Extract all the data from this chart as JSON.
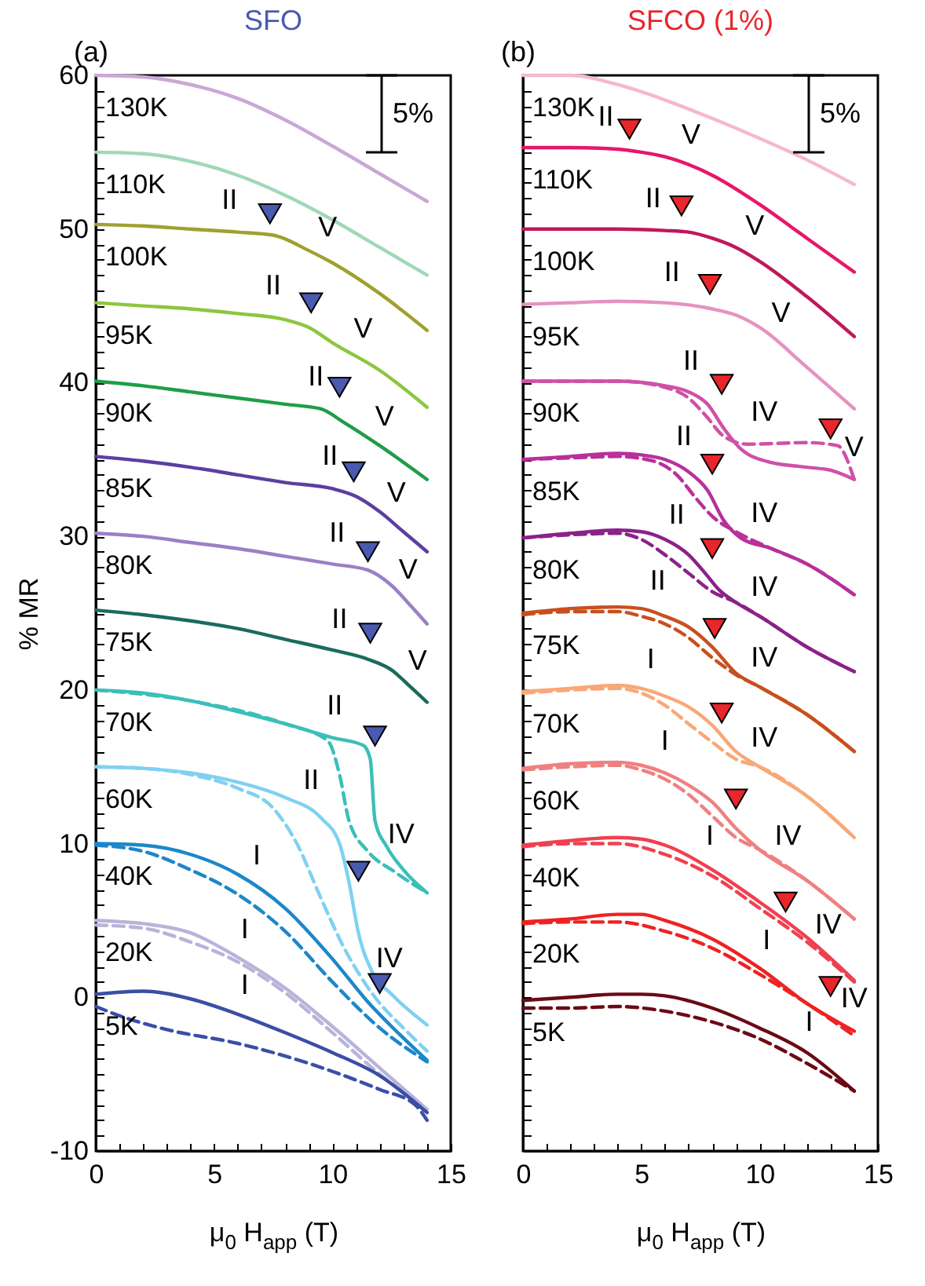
{
  "chart_data": [
    {
      "type": "line",
      "title": "SFO",
      "xlabel": "μ$_{0}$ H$_{app}$ (T)",
      "ylabel": "% MR",
      "xlim": [
        0,
        15
      ],
      "ylim": [
        -10,
        60
      ],
      "xticks": [
        0,
        {
          "value": 1,
          "label": null
        },
        {
          "value": 2,
          "label": null
        },
        {
          "value": 3,
          "label": null
        },
        {
          "value": 4,
          "label": null
        },
        5,
        {
          "value": 6,
          "label": null
        },
        {
          "value": 7,
          "label": null
        },
        {
          "value": 8,
          "label": null
        },
        {
          "value": 9,
          "label": null
        },
        10,
        {
          "value": 11,
          "label": null
        },
        {
          "value": 12,
          "label": null
        },
        {
          "value": 13,
          "label": null
        },
        {
          "value": 14,
          "label": null
        },
        15
      ],
      "yticks": [
        -10,
        {
          "value": -9,
          "label": null
        },
        {
          "value": -8,
          "label": null
        },
        {
          "value": -7,
          "label": null
        },
        {
          "value": -6,
          "label": null
        },
        {
          "value": -5,
          "label": null
        },
        {
          "value": -4,
          "label": null
        },
        {
          "value": -3,
          "label": null
        },
        {
          "value": -2,
          "label": null
        },
        {
          "value": -1,
          "label": null
        },
        0,
        {
          "value": 1,
          "label": null
        },
        {
          "value": 2,
          "label": null
        },
        {
          "value": 3,
          "label": null
        },
        {
          "value": 4,
          "label": null
        },
        {
          "value": 5,
          "label": null
        },
        {
          "value": 6,
          "label": null
        },
        {
          "value": 7,
          "label": null
        },
        {
          "value": 8,
          "label": null
        },
        {
          "value": 9,
          "label": null
        },
        10,
        {
          "value": 11,
          "label": null
        },
        {
          "value": 12,
          "label": null
        },
        {
          "value": 13,
          "label": null
        },
        {
          "value": 14,
          "label": null
        },
        {
          "value": 15,
          "label": null
        },
        {
          "value": 16,
          "label": null
        },
        {
          "value": 17,
          "label": null
        },
        {
          "value": 18,
          "label": null
        },
        {
          "value": 19,
          "label": null
        },
        20,
        {
          "value": 21,
          "label": null
        },
        {
          "value": 22,
          "label": null
        },
        {
          "value": 23,
          "label": null
        },
        {
          "value": 24,
          "label": null
        },
        {
          "value": 25,
          "label": null
        },
        {
          "value": 26,
          "label": null
        },
        {
          "value": 27,
          "label": null
        },
        {
          "value": 28,
          "label": null
        },
        {
          "value": 29,
          "label": null
        },
        30,
        {
          "value": 31,
          "label": null
        },
        {
          "value": 32,
          "label": null
        },
        {
          "value": 33,
          "label": null
        },
        {
          "value": 34,
          "label": null
        },
        {
          "value": 35,
          "label": null
        },
        {
          "value": 36,
          "label": null
        },
        {
          "value": 37,
          "label": null
        },
        {
          "value": 38,
          "label": null
        },
        {
          "value": 39,
          "label": null
        },
        40,
        {
          "value": 41,
          "label": null
        },
        {
          "value": 42,
          "label": null
        },
        {
          "value": 43,
          "label": null
        },
        {
          "value": 44,
          "label": null
        },
        {
          "value": 45,
          "label": null
        },
        {
          "value": 46,
          "label": null
        },
        {
          "value": 47,
          "label": null
        },
        {
          "value": 48,
          "label": null
        },
        {
          "value": 49,
          "label": null
        },
        50,
        {
          "value": 51,
          "label": null
        },
        {
          "value": 52,
          "label": null
        },
        {
          "value": 53,
          "label": null
        },
        {
          "value": 54,
          "label": null
        },
        {
          "value": 55,
          "label": null
        },
        {
          "value": 56,
          "label": null
        },
        {
          "value": 57,
          "label": null
        },
        {
          "value": 58,
          "label": null
        },
        {
          "value": 59,
          "label": null
        },
        60
      ],
      "annotations": [
        "(a)",
        {
          "text": "II",
          "x": 5.65,
          "y": 49.8
        },
        {
          "text": "V",
          "x": 9.8,
          "y": 48
        },
        {
          "text": "II",
          "x": 7.5,
          "y": 44.2
        },
        {
          "text": "V",
          "x": 11.3,
          "y": 41.4
        },
        {
          "text": "II",
          "x": 9.3,
          "y": 38.3
        },
        {
          "text": "V",
          "x": 12.2,
          "y": 35.7
        },
        {
          "text": "II",
          "x": 9.9,
          "y": 33.1
        },
        {
          "text": "V",
          "x": 12.7,
          "y": 30.7
        },
        {
          "text": "II",
          "x": 10.2,
          "y": 28.1
        },
        {
          "text": "V",
          "x": 13.2,
          "y": 25.7
        },
        {
          "text": "II",
          "x": 10.3,
          "y": 22.5
        },
        {
          "text": "V",
          "x": 13.6,
          "y": 19.8
        },
        {
          "text": "II",
          "x": 10.1,
          "y": 16.9
        },
        {
          "text": "II",
          "x": 9.1,
          "y": 12
        },
        {
          "text": "IV",
          "x": 12.9,
          "y": 8.5
        },
        {
          "text": "I",
          "x": 6.8,
          "y": 7.1
        },
        {
          "text": "IV",
          "x": 12.4,
          "y": 0.4
        },
        {
          "text": "I",
          "x": 6.3,
          "y": 2.3
        },
        {
          "text": "I",
          "x": 6.3,
          "y": -1.3
        },
        "5%"
      ],
      "series": [
        {
          "name": "130K",
          "color": "#c9a7d6",
          "x": [
            0,
            2,
            4,
            6,
            8,
            10,
            12,
            14
          ],
          "values": [
            60,
            59.9,
            59.4,
            58.5,
            57.1,
            55.4,
            53.6,
            51.8
          ]
        },
        {
          "name": "110K",
          "color": "#9fd8b8",
          "x": [
            0,
            2,
            4,
            6,
            8,
            10,
            12,
            14
          ],
          "values": [
            55,
            54.9,
            54.4,
            53.5,
            52.2,
            50.6,
            48.8,
            47
          ]
        },
        {
          "name": "100K",
          "color": "#a0a030",
          "x": [
            0,
            2,
            4,
            6,
            7.5,
            9,
            10,
            12,
            14
          ],
          "values": [
            50.3,
            50.2,
            50,
            49.8,
            49.6,
            48.6,
            47.8,
            45.8,
            43.4
          ]
        },
        {
          "name": "95K",
          "color": "#8cc63f",
          "x": [
            0,
            2,
            4,
            6,
            8,
            9,
            10,
            12,
            14
          ],
          "values": [
            45.2,
            45,
            44.8,
            44.5,
            44.1,
            43.6,
            42.6,
            40.8,
            38.4
          ]
        },
        {
          "name": "90K",
          "color": "#1e9e48",
          "x": [
            0,
            2,
            4,
            6,
            8,
            9.5,
            10.5,
            12,
            14
          ],
          "values": [
            40.1,
            39.8,
            39.4,
            39,
            38.6,
            38.3,
            37.4,
            35.9,
            33.7
          ]
        },
        {
          "name": "85K",
          "color": "#5b3fa0",
          "x": [
            0,
            2,
            4,
            6,
            8,
            10,
            11,
            12,
            13,
            14
          ],
          "values": [
            35.2,
            34.9,
            34.5,
            34,
            33.5,
            33.1,
            32.6,
            31.6,
            30.3,
            29
          ]
        },
        {
          "name": "80K",
          "color": "#9b80c4",
          "x": [
            0,
            2,
            4,
            6,
            8,
            10,
            11.5,
            12.5,
            13.3,
            14
          ],
          "values": [
            30.2,
            30,
            29.6,
            29.2,
            28.7,
            28.2,
            27.8,
            26.8,
            25.5,
            24.3
          ]
        },
        {
          "name": "75K",
          "color": "#1a6b5e",
          "x": [
            0,
            2,
            4,
            6,
            8,
            10,
            11.5,
            12.5,
            13.3,
            14
          ],
          "values": [
            25.2,
            24.9,
            24.5,
            24,
            23.3,
            22.6,
            22,
            21.3,
            20.2,
            19.2
          ]
        },
        {
          "name": "70K",
          "color": "#3bbfb8",
          "x": [
            0,
            2,
            4,
            6,
            8,
            10,
            11.3,
            11.6,
            11.8,
            12.3,
            13,
            14
          ],
          "values": [
            20,
            19.8,
            19.3,
            18.6,
            17.8,
            16.9,
            16.4,
            15.5,
            11.5,
            9.8,
            8.3,
            6.8
          ]
        },
        {
          "color": "#3bbfb8",
          "line_style": "dashed",
          "x": [
            0,
            4,
            8,
            9.8,
            10.3,
            10.7,
            11.5,
            12.6,
            14
          ],
          "values": [
            20,
            19.3,
            17.8,
            16.7,
            14.5,
            11.5,
            9.5,
            8.2,
            6.8
          ]
        },
        {
          "name": "60K",
          "color": "#7fd1f0",
          "x": [
            0,
            2,
            4,
            6,
            8,
            9.5,
            10.3,
            10.7,
            11.1,
            11.7,
            12.5,
            14
          ],
          "values": [
            15,
            14.9,
            14.6,
            14,
            13,
            11.7,
            10,
            7.5,
            4.2,
            1.6,
            0.2,
            -1.8
          ]
        },
        {
          "color": "#7fd1f0",
          "line_style": "dashed",
          "x": [
            0,
            2,
            4,
            6,
            7.5,
            8.5,
            9.5,
            10.5,
            11.8,
            13,
            14
          ],
          "values": [
            15,
            14.9,
            14.5,
            13.6,
            12.3,
            10,
            6.5,
            3.2,
            0,
            -2,
            -3.5
          ]
        },
        {
          "name": "40K",
          "color": "#1c87c9",
          "x": [
            0,
            2,
            4,
            6,
            8,
            10,
            11.5,
            12.5,
            14
          ],
          "values": [
            10,
            9.9,
            9.3,
            8,
            5.8,
            2.5,
            -0.3,
            -1.9,
            -4.1
          ]
        },
        {
          "color": "#1c87c9",
          "line_style": "dashed",
          "x": [
            0,
            2,
            4,
            6,
            8,
            10,
            12,
            14
          ],
          "values": [
            9.9,
            9.5,
            8.3,
            6.7,
            4.3,
            1,
            -2,
            -4.2
          ]
        },
        {
          "name": "20K",
          "color": "#b7b4da",
          "x": [
            0,
            2,
            4,
            6,
            8,
            10,
            12,
            14
          ],
          "values": [
            5,
            4.8,
            4.2,
            2.6,
            0.6,
            -1.9,
            -4.6,
            -7.3
          ]
        },
        {
          "color": "#b7b4da",
          "line_style": "dashed",
          "x": [
            0,
            2,
            4,
            6,
            8,
            10,
            12,
            14
          ],
          "values": [
            4.7,
            4.5,
            3.6,
            2.3,
            0.3,
            -2.3,
            -5,
            -7.3
          ]
        },
        {
          "name": "5K",
          "color": "#3b4ea6",
          "x": [
            0,
            2,
            4,
            6,
            8,
            10,
            12,
            14
          ],
          "values": [
            0.2,
            0.4,
            -0.1,
            -1.1,
            -2.3,
            -3.6,
            -5.1,
            -7.5
          ]
        },
        {
          "color": "#3b4ea6",
          "line_style": "dashed",
          "x": [
            0,
            1,
            3,
            6,
            9,
            12,
            13.5,
            14
          ],
          "values": [
            -0.6,
            -1.2,
            -2.1,
            -3,
            -4.3,
            -6,
            -7,
            -8
          ]
        },
        {
          "type": "scatter",
          "marker": "triangle",
          "color": "#4a5ab0",
          "x": [
            7.36,
            9.1,
            10.3,
            10.9,
            11.5,
            11.6,
            11.8,
            11.1,
            12
          ],
          "values": [
            51,
            45.2,
            39.7,
            34.2,
            29,
            23.7,
            17,
            8.2,
            0.9
          ]
        }
      ]
    },
    {
      "type": "line",
      "title": "SFCO (1%)",
      "xlabel": "μ$_{0}$ H$_{app}$ (T)",
      "xlim": [
        0,
        15
      ],
      "ylim": [
        -10,
        60
      ],
      "tick_labels": "x",
      "xticks": [
        0,
        {
          "value": 1,
          "label": null
        },
        {
          "value": 2,
          "label": null
        },
        {
          "value": 3,
          "label": null
        },
        {
          "value": 4,
          "label": null
        },
        5,
        {
          "value": 6,
          "label": null
        },
        {
          "value": 7,
          "label": null
        },
        {
          "value": 8,
          "label": null
        },
        {
          "value": 9,
          "label": null
        },
        10,
        {
          "value": 11,
          "label": null
        },
        {
          "value": 12,
          "label": null
        },
        {
          "value": 13,
          "label": null
        },
        {
          "value": 14,
          "label": null
        },
        15
      ],
      "yticks": [
        -10,
        {
          "value": -9,
          "label": null
        },
        {
          "value": -8,
          "label": null
        },
        {
          "value": -7,
          "label": null
        },
        {
          "value": -6,
          "label": null
        },
        {
          "value": -5,
          "label": null
        },
        {
          "value": -4,
          "label": null
        },
        {
          "value": -3,
          "label": null
        },
        {
          "value": -2,
          "label": null
        },
        {
          "value": -1,
          "label": null
        },
        0,
        {
          "value": 1,
          "label": null
        },
        {
          "value": 2,
          "label": null
        },
        {
          "value": 3,
          "label": null
        },
        {
          "value": 4,
          "label": null
        },
        {
          "value": 5,
          "label": null
        },
        {
          "value": 6,
          "label": null
        },
        {
          "value": 7,
          "label": null
        },
        {
          "value": 8,
          "label": null
        },
        {
          "value": 9,
          "label": null
        },
        10,
        {
          "value": 11,
          "label": null
        },
        {
          "value": 12,
          "label": null
        },
        {
          "value": 13,
          "label": null
        },
        {
          "value": 14,
          "label": null
        },
        {
          "value": 15,
          "label": null
        },
        {
          "value": 16,
          "label": null
        },
        {
          "value": 17,
          "label": null
        },
        {
          "value": 18,
          "label": null
        },
        {
          "value": 19,
          "label": null
        },
        20,
        {
          "value": 21,
          "label": null
        },
        {
          "value": 22,
          "label": null
        },
        {
          "value": 23,
          "label": null
        },
        {
          "value": 24,
          "label": null
        },
        {
          "value": 25,
          "label": null
        },
        {
          "value": 26,
          "label": null
        },
        {
          "value": 27,
          "label": null
        },
        {
          "value": 28,
          "label": null
        },
        {
          "value": 29,
          "label": null
        },
        30,
        {
          "value": 31,
          "label": null
        },
        {
          "value": 32,
          "label": null
        },
        {
          "value": 33,
          "label": null
        },
        {
          "value": 34,
          "label": null
        },
        {
          "value": 35,
          "label": null
        },
        {
          "value": 36,
          "label": null
        },
        {
          "value": 37,
          "label": null
        },
        {
          "value": 38,
          "label": null
        },
        {
          "value": 39,
          "label": null
        },
        40,
        {
          "value": 41,
          "label": null
        },
        {
          "value": 42,
          "label": null
        },
        {
          "value": 43,
          "label": null
        },
        {
          "value": 44,
          "label": null
        },
        {
          "value": 45,
          "label": null
        },
        {
          "value": 46,
          "label": null
        },
        {
          "value": 47,
          "label": null
        },
        {
          "value": 48,
          "label": null
        },
        {
          "value": 49,
          "label": null
        },
        50,
        {
          "value": 51,
          "label": null
        },
        {
          "value": 52,
          "label": null
        },
        {
          "value": 53,
          "label": null
        },
        {
          "value": 54,
          "label": null
        },
        {
          "value": 55,
          "label": null
        },
        {
          "value": 56,
          "label": null
        },
        {
          "value": 57,
          "label": null
        },
        {
          "value": 58,
          "label": null
        },
        {
          "value": 59,
          "label": null
        },
        60
      ],
      "annotations": [
        "(b)",
        {
          "text": "II",
          "x": 3.5,
          "y": 55.2
        },
        {
          "text": "V",
          "x": 7.1,
          "y": 54
        },
        {
          "text": "II",
          "x": 5.5,
          "y": 49.9
        },
        {
          "text": "V",
          "x": 9.8,
          "y": 48.1
        },
        {
          "text": "II",
          "x": 6.3,
          "y": 45.1
        },
        {
          "text": "V",
          "x": 10.9,
          "y": 42.4
        },
        {
          "text": "II",
          "x": 7.1,
          "y": 39.3
        },
        {
          "text": "IV",
          "x": 10.2,
          "y": 36
        },
        {
          "text": "II",
          "x": 6.8,
          "y": 34.4
        },
        {
          "text": "V",
          "x": 14,
          "y": 33.7
        },
        {
          "text": "IV",
          "x": 10.2,
          "y": 29.4
        },
        {
          "text": "II",
          "x": 6.5,
          "y": 29.3
        },
        {
          "text": "IV",
          "x": 10.2,
          "y": 24.6
        },
        {
          "text": "II",
          "x": 5.7,
          "y": 25
        },
        {
          "text": "I",
          "x": 5.4,
          "y": 19.9
        },
        {
          "text": "IV",
          "x": 10.2,
          "y": 20
        },
        {
          "text": "I",
          "x": 6,
          "y": 14.6
        },
        {
          "text": "IV",
          "x": 10.2,
          "y": 14.8
        },
        {
          "text": "I",
          "x": 7.9,
          "y": 8.4
        },
        {
          "text": "IV",
          "x": 11.2,
          "y": 8.4
        },
        {
          "text": "I",
          "x": 10.3,
          "y": 1.6
        },
        {
          "text": "IV",
          "x": 12.9,
          "y": 2.6
        },
        {
          "text": "I",
          "x": 12.1,
          "y": -3.7
        },
        {
          "text": "IV",
          "x": 14,
          "y": -2.2
        },
        "5%"
      ],
      "series": [
        {
          "name": "130K",
          "color": "#f5b8d0",
          "x": [
            0,
            2,
            4,
            6,
            8,
            10,
            12,
            14
          ],
          "values": [
            60,
            60,
            59.4,
            58.4,
            57.2,
            55.9,
            54.5,
            52.9
          ]
        },
        {
          "name": "110K",
          "color": "#e8166a",
          "x": [
            0,
            2,
            4,
            5,
            6,
            8,
            10,
            12,
            14
          ],
          "values": [
            55.3,
            55.3,
            55.2,
            55,
            54.7,
            53.5,
            51.6,
            49.4,
            47.2
          ]
        },
        {
          "name": "100K",
          "color": "#c0185a",
          "x": [
            0,
            2,
            4,
            6,
            7,
            8,
            9,
            10,
            12,
            14
          ],
          "values": [
            50,
            50,
            50,
            49.9,
            49.8,
            49.4,
            48.8,
            47.9,
            45.6,
            43
          ]
        },
        {
          "name": "95K",
          "color": "#e592c0",
          "x": [
            0,
            2,
            4,
            6,
            8,
            9,
            10,
            12,
            14
          ],
          "values": [
            45.1,
            45.2,
            45.3,
            45.2,
            44.8,
            44.4,
            43.6,
            41,
            38.3
          ]
        },
        {
          "name": "90K",
          "color": "#d050a8",
          "x": [
            0,
            2,
            4,
            6,
            7,
            7.8,
            8.5,
            9.2,
            10.5,
            12,
            13,
            14
          ],
          "values": [
            40.1,
            40.1,
            40.1,
            39.8,
            39.4,
            38.6,
            37,
            35.7,
            34.8,
            34.5,
            34.3,
            33.7
          ]
        },
        {
          "color": "#d050a8",
          "line_style": "dashed",
          "x": [
            0,
            4,
            6,
            7,
            7.7,
            8.5,
            9.5,
            12,
            13.3,
            14
          ],
          "values": [
            40.1,
            40.1,
            39.7,
            39,
            37.9,
            36.5,
            36,
            36.1,
            35.9,
            33.7
          ]
        },
        {
          "name": "85K",
          "color": "#b8309a",
          "x": [
            0,
            2,
            4,
            5,
            6,
            7,
            7.8,
            8.5,
            9.2,
            10.5,
            12,
            14
          ],
          "values": [
            35,
            35.2,
            35.4,
            35.3,
            35,
            34.2,
            33,
            31,
            29.9,
            29.2,
            28.2,
            26.2
          ]
        },
        {
          "color": "#b8309a",
          "line_style": "dashed",
          "x": [
            0,
            2,
            4,
            5.5,
            6.5,
            7.3,
            8,
            9,
            10.5,
            12,
            14
          ],
          "values": [
            35,
            35.1,
            35.2,
            34.9,
            34,
            32.5,
            31.3,
            30.3,
            29.2,
            28.2,
            26.2
          ]
        },
        {
          "name": "80K",
          "color": "#8a2288",
          "x": [
            0,
            2,
            4,
            5,
            6,
            7,
            7.7,
            8.3,
            9,
            10,
            12,
            14
          ],
          "values": [
            29.9,
            30.2,
            30.4,
            30.3,
            29.8,
            28.8,
            27.6,
            26.5,
            25.7,
            24.8,
            22.8,
            21.2
          ]
        },
        {
          "color": "#8a2288",
          "line_style": "dashed",
          "x": [
            0,
            2,
            4,
            5,
            6,
            7,
            8,
            9,
            10,
            12,
            14
          ],
          "values": [
            29.9,
            30.1,
            30.2,
            29.8,
            28.8,
            27.6,
            26.4,
            25.7,
            24.8,
            22.8,
            21.2
          ]
        },
        {
          "name": "75K",
          "color": "#c8501e",
          "x": [
            0,
            2,
            4,
            5,
            6,
            7,
            8,
            9,
            10,
            12,
            14
          ],
          "values": [
            25,
            25.3,
            25.4,
            25.3,
            24.8,
            24.1,
            22.8,
            21.1,
            20.2,
            18.4,
            16
          ]
        },
        {
          "color": "#c8501e",
          "line_style": "dashed",
          "x": [
            0,
            2,
            4,
            5,
            6,
            7,
            8,
            9,
            10,
            12,
            14
          ],
          "values": [
            24.9,
            25.1,
            25.1,
            24.8,
            24.3,
            23.4,
            22.1,
            21,
            20.2,
            18.4,
            16
          ]
        },
        {
          "name": "70K",
          "color": "#f8a878",
          "x": [
            0,
            2,
            4,
            5,
            6,
            7,
            8,
            9,
            10,
            12,
            14
          ],
          "values": [
            19.9,
            20.1,
            20.3,
            20.1,
            19.6,
            18.9,
            17.7,
            16,
            15,
            13.1,
            10.4
          ]
        },
        {
          "color": "#f8a878",
          "line_style": "dashed",
          "x": [
            0,
            2,
            4,
            5,
            6,
            7,
            8,
            9,
            10,
            12,
            14
          ],
          "values": [
            19.8,
            20,
            20.1,
            19.8,
            19,
            17.8,
            16.6,
            15.5,
            15,
            13.1,
            10.4
          ]
        },
        {
          "name": "60K",
          "color": "#f08080",
          "x": [
            0,
            2,
            4,
            5,
            6,
            7,
            8,
            9,
            10,
            12,
            14
          ],
          "values": [
            14.9,
            15.2,
            15.3,
            15.1,
            14.6,
            13.8,
            12.7,
            11,
            9.6,
            7.6,
            5.1
          ]
        },
        {
          "color": "#f08080",
          "line_style": "dashed",
          "x": [
            0,
            2,
            4,
            5,
            6,
            7,
            8,
            9,
            10,
            12,
            14
          ],
          "values": [
            14.8,
            15,
            15.1,
            14.8,
            14.2,
            13.2,
            11.8,
            10.4,
            9.6,
            7.6,
            5.1
          ]
        },
        {
          "name": "40K",
          "color": "#f04050",
          "x": [
            0,
            2,
            4,
            5,
            6,
            8,
            10,
            12,
            14
          ],
          "values": [
            9.9,
            10.2,
            10.4,
            10.3,
            9.9,
            8.3,
            6.2,
            3.9,
            1.1
          ]
        },
        {
          "color": "#f04050",
          "line_style": "dashed",
          "x": [
            0,
            2,
            4,
            6,
            8,
            10,
            12,
            14
          ],
          "values": [
            9.8,
            10,
            10,
            9.3,
            7.9,
            5.8,
            3.6,
            1
          ]
        },
        {
          "name": "20K",
          "color": "#ee2222",
          "x": [
            0,
            2,
            4,
            5,
            6,
            8,
            10,
            12,
            14
          ],
          "values": [
            4.9,
            5.1,
            5.4,
            5.4,
            5,
            3.8,
            1.9,
            -0.4,
            -2.2
          ]
        },
        {
          "color": "#ee2222",
          "line_style": "dashed",
          "x": [
            0,
            2,
            4,
            6,
            8,
            10,
            12,
            14
          ],
          "values": [
            4.8,
            4.9,
            4.9,
            4.3,
            3.2,
            1.5,
            -0.4,
            -2.5
          ]
        },
        {
          "name": "5K",
          "color": "#6b0a14",
          "x": [
            0,
            2,
            4,
            5,
            6,
            8,
            10,
            12,
            14
          ],
          "values": [
            -0.2,
            0,
            0.2,
            0.2,
            0.1,
            -0.7,
            -2,
            -3.6,
            -6.1
          ]
        },
        {
          "color": "#6b0a14",
          "line_style": "dashed",
          "x": [
            0,
            2,
            4,
            6,
            8,
            10,
            12,
            14
          ],
          "values": [
            -0.7,
            -0.7,
            -0.6,
            -0.9,
            -1.6,
            -2.7,
            -4.3,
            -6.1
          ]
        },
        {
          "type": "scatter",
          "marker": "triangle",
          "color": "#e8262b",
          "x": [
            4.5,
            6.7,
            7.9,
            8.4,
            13,
            8,
            8,
            8.1,
            8.4,
            9,
            11.1,
            13
          ],
          "values": [
            56.5,
            51.5,
            46.4,
            39.9,
            37,
            34.7,
            29.2,
            24,
            18.5,
            12.9,
            6.2,
            0.7
          ]
        }
      ]
    }
  ]
}
